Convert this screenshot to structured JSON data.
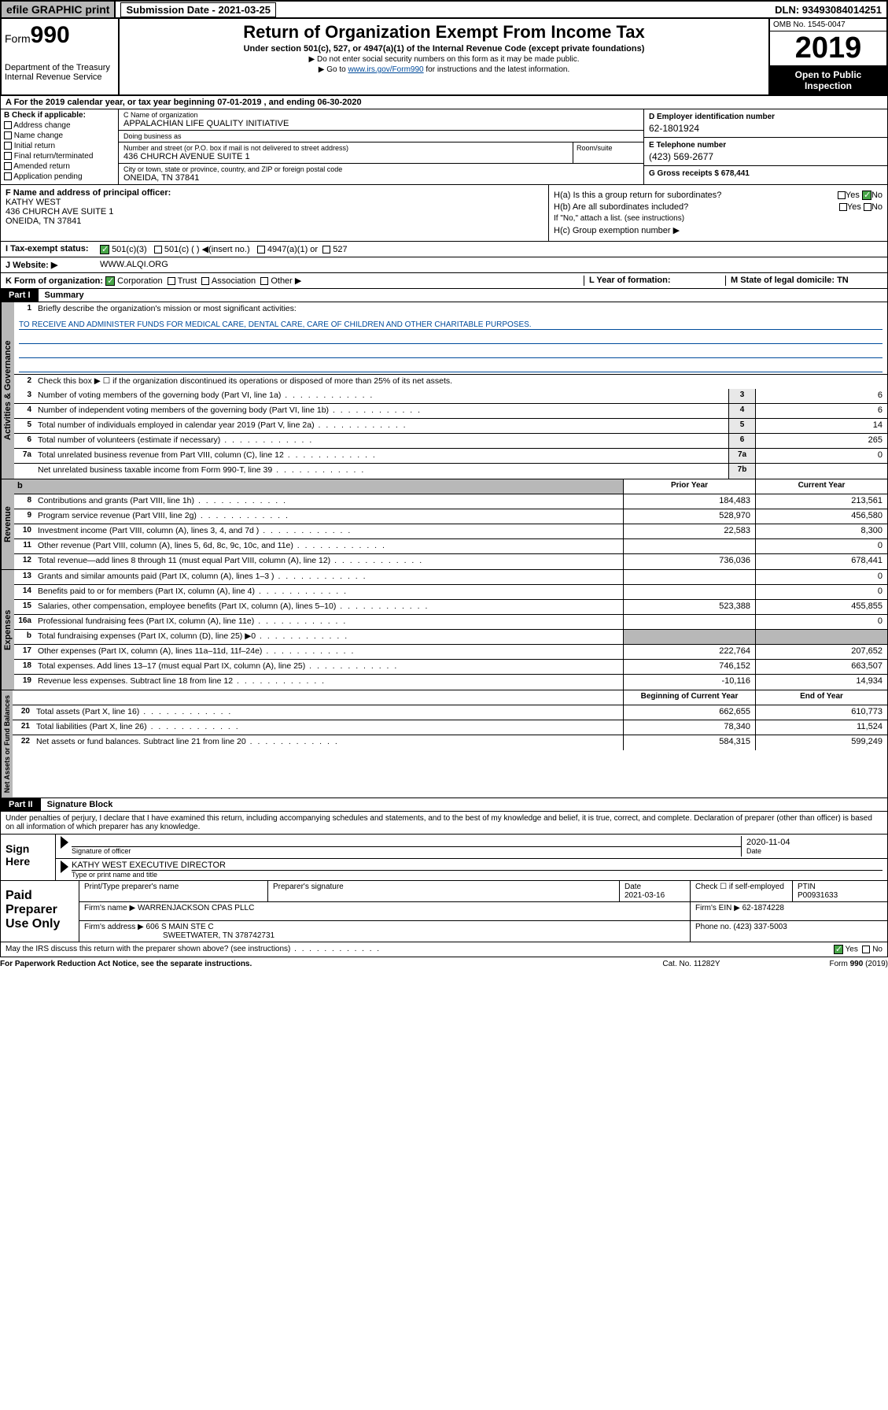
{
  "top": {
    "efile": "efile GRAPHIC print",
    "sub_date_lbl": "Submission Date - 2021-03-25",
    "dln": "DLN: 93493084014251"
  },
  "header": {
    "form_prefix": "Form",
    "form_num": "990",
    "dept": "Department of the Treasury Internal Revenue Service",
    "title": "Return of Organization Exempt From Income Tax",
    "subtitle": "Under section 501(c), 527, or 4947(a)(1) of the Internal Revenue Code (except private foundations)",
    "note1": "▶ Do not enter social security numbers on this form as it may be made public.",
    "note2_pre": "▶ Go to ",
    "note2_link": "www.irs.gov/Form990",
    "note2_post": " for instructions and the latest information.",
    "omb": "OMB No. 1545-0047",
    "year": "2019",
    "open": "Open to Public Inspection"
  },
  "period": "A  For the 2019 calendar year, or tax year beginning 07-01-2019   , and ending 06-30-2020",
  "boxB": {
    "hdr": "B Check if applicable:",
    "items": [
      "Address change",
      "Name change",
      "Initial return",
      "Final return/terminated",
      "Amended return",
      "Application pending"
    ]
  },
  "boxC": {
    "name_lbl": "C Name of organization",
    "name": "APPALACHIAN LIFE QUALITY INITIATIVE",
    "dba_lbl": "Doing business as",
    "addr_lbl": "Number and street (or P.O. box if mail is not delivered to street address)",
    "addr": "436 CHURCH AVENUE SUITE 1",
    "room_lbl": "Room/suite",
    "city_lbl": "City or town, state or province, country, and ZIP or foreign postal code",
    "city": "ONEIDA, TN  37841"
  },
  "boxD": {
    "lbl": "D Employer identification number",
    "val": "62-1801924"
  },
  "boxE": {
    "lbl": "E Telephone number",
    "val": "(423) 569-2677"
  },
  "boxG": {
    "lbl": "G Gross receipts $ 678,441"
  },
  "boxF": {
    "lbl": "F  Name and address of principal officer:",
    "name": "KATHY WEST",
    "addr1": "436 CHURCH AVE SUITE 1",
    "addr2": "ONEIDA, TN  37841"
  },
  "boxH": {
    "a": "H(a)  Is this a group return for subordinates?",
    "b": "H(b)  Are all subordinates included?",
    "b_note": "If \"No,\" attach a list. (see instructions)",
    "c": "H(c)  Group exemption number ▶"
  },
  "boxI": {
    "lbl": "I  Tax-exempt status:",
    "opt1": "501(c)(3)",
    "opt2": "501(c) (  ) ◀(insert no.)",
    "opt3": "4947(a)(1) or",
    "opt4": "527"
  },
  "boxJ": {
    "lbl": "J  Website: ▶",
    "val": "WWW.ALQI.ORG"
  },
  "boxK": {
    "lbl": "K Form of organization:",
    "corp": "Corporation",
    "trust": "Trust",
    "assoc": "Association",
    "other": "Other ▶"
  },
  "boxL": "L Year of formation:",
  "boxM": "M State of legal domicile: TN",
  "part1": {
    "tab": "Part I",
    "title": "Summary",
    "l1_lbl": "Briefly describe the organization's mission or most significant activities:",
    "l1_val": "TO RECEIVE AND ADMINISTER FUNDS FOR MEDICAL CARE, DENTAL CARE, CARE OF CHILDREN AND OTHER CHARITABLE PURPOSES.",
    "l2": "Check this box ▶ ☐  if the organization discontinued its operations or disposed of more than 25% of its net assets.",
    "lines_gov": [
      {
        "n": "3",
        "t": "Number of voting members of the governing body (Part VI, line 1a)",
        "box": "3",
        "v": "6"
      },
      {
        "n": "4",
        "t": "Number of independent voting members of the governing body (Part VI, line 1b)",
        "box": "4",
        "v": "6"
      },
      {
        "n": "5",
        "t": "Total number of individuals employed in calendar year 2019 (Part V, line 2a)",
        "box": "5",
        "v": "14"
      },
      {
        "n": "6",
        "t": "Total number of volunteers (estimate if necessary)",
        "box": "6",
        "v": "265"
      },
      {
        "n": "7a",
        "t": "Total unrelated business revenue from Part VIII, column (C), line 12",
        "box": "7a",
        "v": "0"
      },
      {
        "n": "",
        "t": "Net unrelated business taxable income from Form 990-T, line 39",
        "box": "7b",
        "v": ""
      }
    ],
    "col_prior": "Prior Year",
    "col_curr": "Current Year",
    "rev": [
      {
        "n": "8",
        "t": "Contributions and grants (Part VIII, line 1h)",
        "p": "184,483",
        "c": "213,561"
      },
      {
        "n": "9",
        "t": "Program service revenue (Part VIII, line 2g)",
        "p": "528,970",
        "c": "456,580"
      },
      {
        "n": "10",
        "t": "Investment income (Part VIII, column (A), lines 3, 4, and 7d )",
        "p": "22,583",
        "c": "8,300"
      },
      {
        "n": "11",
        "t": "Other revenue (Part VIII, column (A), lines 5, 6d, 8c, 9c, 10c, and 11e)",
        "p": "",
        "c": "0"
      },
      {
        "n": "12",
        "t": "Total revenue—add lines 8 through 11 (must equal Part VIII, column (A), line 12)",
        "p": "736,036",
        "c": "678,441"
      }
    ],
    "exp": [
      {
        "n": "13",
        "t": "Grants and similar amounts paid (Part IX, column (A), lines 1–3 )",
        "p": "",
        "c": "0"
      },
      {
        "n": "14",
        "t": "Benefits paid to or for members (Part IX, column (A), line 4)",
        "p": "",
        "c": "0"
      },
      {
        "n": "15",
        "t": "Salaries, other compensation, employee benefits (Part IX, column (A), lines 5–10)",
        "p": "523,388",
        "c": "455,855"
      },
      {
        "n": "16a",
        "t": "Professional fundraising fees (Part IX, column (A), line 11e)",
        "p": "",
        "c": "0"
      },
      {
        "n": "b",
        "t": "Total fundraising expenses (Part IX, column (D), line 25) ▶0",
        "p": "—shaded—",
        "c": "—shaded—"
      },
      {
        "n": "17",
        "t": "Other expenses (Part IX, column (A), lines 11a–11d, 11f–24e)",
        "p": "222,764",
        "c": "207,652"
      },
      {
        "n": "18",
        "t": "Total expenses. Add lines 13–17 (must equal Part IX, column (A), line 25)",
        "p": "746,152",
        "c": "663,507"
      },
      {
        "n": "19",
        "t": "Revenue less expenses. Subtract line 18 from line 12",
        "p": "-10,116",
        "c": "14,934"
      }
    ],
    "col_begin": "Beginning of Current Year",
    "col_end": "End of Year",
    "net": [
      {
        "n": "20",
        "t": "Total assets (Part X, line 16)",
        "p": "662,655",
        "c": "610,773"
      },
      {
        "n": "21",
        "t": "Total liabilities (Part X, line 26)",
        "p": "78,340",
        "c": "11,524"
      },
      {
        "n": "22",
        "t": "Net assets or fund balances. Subtract line 21 from line 20",
        "p": "584,315",
        "c": "599,249"
      }
    ],
    "vtab_gov": "Activities & Governance",
    "vtab_rev": "Revenue",
    "vtab_exp": "Expenses",
    "vtab_net": "Net Assets or Fund Balances"
  },
  "part2": {
    "tab": "Part II",
    "title": "Signature Block",
    "intro": "Under penalties of perjury, I declare that I have examined this return, including accompanying schedules and statements, and to the best of my knowledge and belief, it is true, correct, and complete. Declaration of preparer (other than officer) is based on all information of which preparer has any knowledge.",
    "sign_here": "Sign Here",
    "sig_officer": "Signature of officer",
    "sig_date": "2020-11-04",
    "date_lbl": "Date",
    "officer_name": "KATHY WEST EXECUTIVE DIRECTOR",
    "officer_lbl": "Type or print name and title",
    "paid": "Paid Preparer Use Only",
    "prep_name_lbl": "Print/Type preparer's name",
    "prep_sig_lbl": "Preparer's signature",
    "prep_date_lbl": "Date",
    "prep_date": "2021-03-16",
    "check_self": "Check ☐ if self-employed",
    "ptin_lbl": "PTIN",
    "ptin": "P00931633",
    "firm_name_lbl": "Firm's name    ▶",
    "firm_name": "WARRENJACKSON CPAS PLLC",
    "firm_ein_lbl": "Firm's EIN ▶",
    "firm_ein": "62-1874228",
    "firm_addr_lbl": "Firm's address ▶",
    "firm_addr1": "606 S MAIN STE C",
    "firm_addr2": "SWEETWATER, TN  378742731",
    "phone_lbl": "Phone no.",
    "phone": "(423) 337-5003"
  },
  "footer": {
    "discuss": "May the IRS discuss this return with the preparer shown above? (see instructions)",
    "yes": "Yes",
    "no": "No",
    "paperwork": "For Paperwork Reduction Act Notice, see the separate instructions.",
    "cat": "Cat. No. 11282Y",
    "form": "Form 990 (2019)"
  }
}
